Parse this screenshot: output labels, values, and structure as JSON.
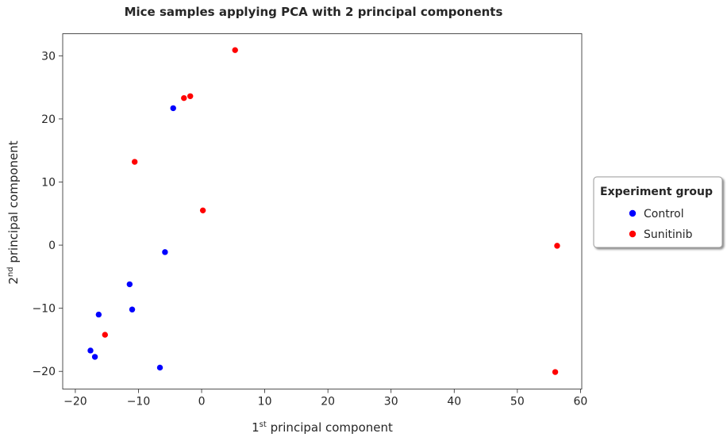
{
  "chart_data": {
    "type": "scatter",
    "title": "Mice samples applying PCA with 2 principal components",
    "xlabel": {
      "prefix": "1",
      "sup": "st",
      "text": " principal component"
    },
    "ylabel": {
      "prefix": "2",
      "sup": "nd",
      "text": " principal component"
    },
    "xlim": [
      -22,
      60.2
    ],
    "ylim": [
      -22.8,
      33.5
    ],
    "xticks": [
      -20,
      -10,
      0,
      10,
      20,
      30,
      40,
      50,
      60
    ],
    "yticks": [
      -20,
      -10,
      0,
      10,
      20,
      30
    ],
    "grid": false,
    "legend": {
      "title": "Experiment group",
      "placement": "right-outside"
    },
    "series": [
      {
        "name": "Control",
        "color": "#0000ff",
        "points": [
          [
            -4.5,
            21.7
          ],
          [
            -5.8,
            -1.1
          ],
          [
            -11.4,
            -6.2
          ],
          [
            -11.0,
            -10.2
          ],
          [
            -16.3,
            -11.0
          ],
          [
            -17.6,
            -16.7
          ],
          [
            -16.9,
            -17.7
          ],
          [
            -6.6,
            -19.4
          ]
        ]
      },
      {
        "name": "Sunitinib",
        "color": "#ff0000",
        "points": [
          [
            5.3,
            30.9
          ],
          [
            -2.8,
            23.3
          ],
          [
            -1.8,
            23.6
          ],
          [
            -10.6,
            13.2
          ],
          [
            0.2,
            5.5
          ],
          [
            56.3,
            -0.1
          ],
          [
            -15.3,
            -14.2
          ],
          [
            56.0,
            -20.1
          ]
        ]
      }
    ]
  }
}
